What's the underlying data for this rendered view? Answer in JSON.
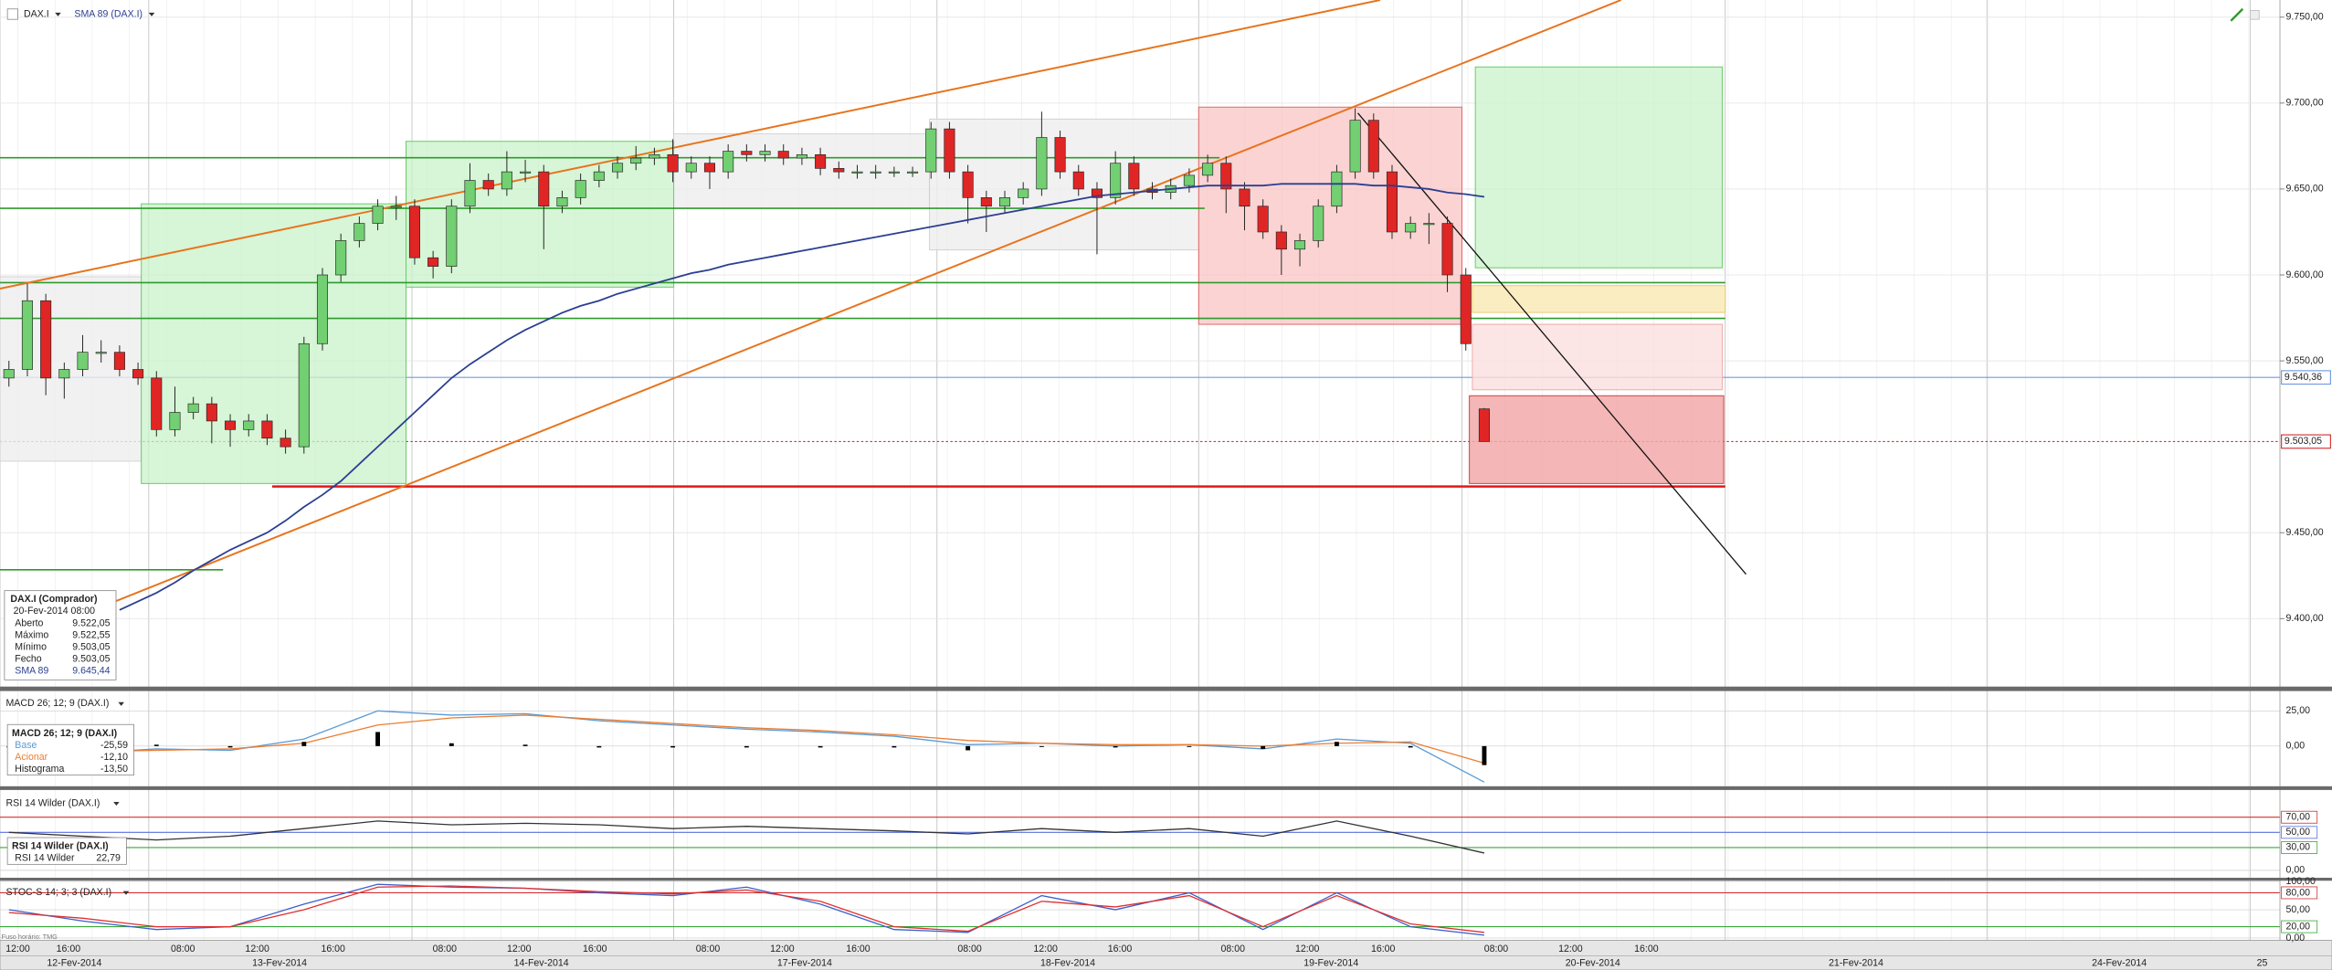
{
  "chart_data": {
    "type": "candlestick",
    "title": "DAX.I",
    "indicator_label": "SMA 89 (DAX.I)",
    "colors": {
      "up": "#72cf72",
      "down": "#e02525",
      "wick": "#222222"
    },
    "ylim": [
      9360,
      9760
    ],
    "yticks": [
      {
        "value": 9400,
        "label": "9.400,00"
      },
      {
        "value": 9450,
        "label": "9.450,00"
      },
      {
        "value": 9550,
        "label": "9.550,00"
      },
      {
        "value": 9600,
        "label": "9.600,00"
      },
      {
        "value": 9650,
        "label": "9.650,00"
      },
      {
        "value": 9700,
        "label": "9.700,00"
      },
      {
        "value": 9750,
        "label": "9.750,00"
      }
    ],
    "grid": true,
    "price_markers": [
      {
        "value": 9540.36,
        "label": "9.540,36",
        "color": "#6f9be0"
      },
      {
        "value": 9503.05,
        "label": "9.503,05",
        "color": "#d43030"
      }
    ],
    "ohlc": [
      [
        9540,
        9550,
        9535,
        9545
      ],
      [
        9545,
        9595,
        9541,
        9585
      ],
      [
        9585,
        9589,
        9530,
        9540
      ],
      [
        9540,
        9549,
        9528,
        9545
      ],
      [
        9545,
        9565,
        9541,
        9555
      ],
      [
        9555,
        9562,
        9549,
        9555
      ],
      [
        9555,
        9559,
        9541,
        9545
      ],
      [
        9545,
        9549,
        9536,
        9540
      ],
      [
        9540,
        9544,
        9506,
        9510
      ],
      [
        9510,
        9535,
        9506,
        9520
      ],
      [
        9520,
        9529,
        9516,
        9525
      ],
      [
        9525,
        9529,
        9502,
        9515
      ],
      [
        9515,
        9519,
        9500,
        9510
      ],
      [
        9510,
        9519,
        9506,
        9515
      ],
      [
        9515,
        9519,
        9501,
        9505
      ],
      [
        9505,
        9510,
        9496,
        9500
      ],
      [
        9500,
        9564,
        9496,
        9560
      ],
      [
        9560,
        9604,
        9556,
        9600
      ],
      [
        9600,
        9624,
        9596,
        9620
      ],
      [
        9620,
        9634,
        9616,
        9630
      ],
      [
        9630,
        9644,
        9626,
        9640
      ],
      [
        9640,
        9646,
        9632,
        9640
      ],
      [
        9640,
        9644,
        9606,
        9610
      ],
      [
        9610,
        9614,
        9598,
        9605
      ],
      [
        9605,
        9644,
        9601,
        9640
      ],
      [
        9640,
        9665,
        9636,
        9655
      ],
      [
        9655,
        9659,
        9646,
        9650
      ],
      [
        9650,
        9672,
        9646,
        9660
      ],
      [
        9660,
        9667,
        9654,
        9660
      ],
      [
        9660,
        9664,
        9615,
        9640
      ],
      [
        9640,
        9649,
        9636,
        9645
      ],
      [
        9645,
        9659,
        9641,
        9655
      ],
      [
        9655,
        9664,
        9651,
        9660
      ],
      [
        9660,
        9669,
        9656,
        9665
      ],
      [
        9665,
        9675,
        9661,
        9668
      ],
      [
        9668,
        9674,
        9664,
        9670
      ],
      [
        9670,
        9679,
        9654,
        9660
      ],
      [
        9660,
        9669,
        9656,
        9665
      ],
      [
        9665,
        9669,
        9650,
        9660
      ],
      [
        9660,
        9676,
        9656,
        9672
      ],
      [
        9672,
        9676,
        9666,
        9670
      ],
      [
        9670,
        9676,
        9666,
        9672
      ],
      [
        9672,
        9676,
        9664,
        9668
      ],
      [
        9668,
        9674,
        9664,
        9670
      ],
      [
        9670,
        9674,
        9658,
        9662
      ],
      [
        9662,
        9666,
        9656,
        9660
      ],
      [
        9660,
        9664,
        9656,
        9660
      ],
      [
        9660,
        9664,
        9656,
        9660
      ],
      [
        9660,
        9663,
        9657,
        9660
      ],
      [
        9660,
        9663,
        9657,
        9660
      ],
      [
        9660,
        9689,
        9656,
        9685
      ],
      [
        9685,
        9689,
        9656,
        9660
      ],
      [
        9660,
        9664,
        9630,
        9645
      ],
      [
        9645,
        9649,
        9625,
        9640
      ],
      [
        9640,
        9649,
        9636,
        9645
      ],
      [
        9645,
        9654,
        9641,
        9650
      ],
      [
        9650,
        9695,
        9646,
        9680
      ],
      [
        9680,
        9684,
        9656,
        9660
      ],
      [
        9660,
        9664,
        9646,
        9650
      ],
      [
        9650,
        9654,
        9612,
        9645
      ],
      [
        9645,
        9672,
        9641,
        9665
      ],
      [
        9665,
        9669,
        9646,
        9650
      ],
      [
        9650,
        9654,
        9644,
        9648
      ],
      [
        9648,
        9656,
        9644,
        9652
      ],
      [
        9652,
        9662,
        9648,
        9658
      ],
      [
        9658,
        9670,
        9654,
        9665
      ],
      [
        9665,
        9669,
        9636,
        9650
      ],
      [
        9650,
        9654,
        9626,
        9640
      ],
      [
        9640,
        9644,
        9621,
        9625
      ],
      [
        9625,
        9629,
        9600,
        9615
      ],
      [
        9615,
        9624,
        9605,
        9620
      ],
      [
        9620,
        9644,
        9616,
        9640
      ],
      [
        9640,
        9664,
        9636,
        9660
      ],
      [
        9660,
        9697,
        9656,
        9690
      ],
      [
        9690,
        9694,
        9656,
        9660
      ],
      [
        9660,
        9664,
        9621,
        9625
      ],
      [
        9625,
        9634,
        9621,
        9630
      ],
      [
        9630,
        9636,
        9618,
        9630
      ],
      [
        9630,
        9634,
        9590,
        9600
      ],
      [
        9600,
        9604,
        9556,
        9560
      ],
      [
        9522.05,
        9522.55,
        9503.05,
        9503.05
      ]
    ],
    "series": [
      {
        "name": "SMA 89",
        "color": "#2b3f91",
        "values": [
          null,
          null,
          null,
          null,
          null,
          null,
          9405,
          9410,
          9415,
          9421,
          9428,
          9434,
          9440,
          9445,
          9450,
          9457,
          9465,
          9472,
          9480,
          9490,
          9500,
          9510,
          9520,
          9530,
          9540,
          9548,
          9555,
          9562,
          9568,
          9573,
          9578,
          9582,
          9585,
          9589,
          9592,
          9595,
          9598,
          9601,
          9603,
          9606,
          9608,
          9610,
          9612,
          9614,
          9616,
          9618,
          9620,
          9622,
          9624,
          9626,
          9628,
          9630,
          9632,
          9634,
          9636,
          9638,
          9640,
          9642,
          9644,
          9646,
          9647,
          9648,
          9649,
          9650,
          9651,
          9652,
          9652,
          9652,
          9652,
          9653,
          9653,
          9653,
          9653,
          9653,
          9652,
          9652,
          9651,
          9650,
          9648,
          9647,
          9645.44
        ]
      }
    ],
    "info_box": {
      "title": "DAX.I (Comprador)",
      "date": "20-Fev-2014 08:00",
      "rows": [
        [
          "Aberto",
          "9.522,05"
        ],
        [
          "Máximo",
          "9.522,55"
        ],
        [
          "Mínimo",
          "9.503,05"
        ],
        [
          "Fecho",
          "9.503,05"
        ],
        [
          "SMA 89",
          "9.645,44"
        ]
      ]
    },
    "panels": [
      {
        "type": "macd",
        "title": "MACD 26; 12; 9 (DAX.I)",
        "ylim": [
          -28,
          37.5
        ],
        "yticks": [
          {
            "value": 0,
            "label": "0,00"
          },
          {
            "value": 25,
            "label": "25,00"
          }
        ],
        "grid_colors": [
          "#cccccc",
          "#cccccc"
        ],
        "series": [
          {
            "name": "Base",
            "color": "#5b9bd5",
            "values": [
              -3,
              -5,
              -2,
              -3,
              5,
              25,
              22,
              23,
              18,
              15,
              12,
              10,
              7,
              1,
              2,
              0,
              1,
              -2,
              5,
              2,
              -25.59
            ]
          },
          {
            "name": "Acionar",
            "color": "#ed7d31",
            "values": [
              -2,
              -4,
              -3,
              -2,
              2,
              15,
              20,
              22,
              19,
              16,
              13,
              11,
              8,
              4,
              2,
              1,
              1,
              0,
              2,
              3,
              -12.1
            ]
          },
          {
            "name": "Histograma",
            "color": "#000000",
            "values": [
              -1,
              -1,
              1,
              -1,
              3,
              10,
              2,
              1,
              -1,
              -1,
              -1,
              -1,
              -1,
              -3,
              0,
              -1,
              0,
              -2,
              3,
              -1,
              -13.5
            ]
          }
        ],
        "info_values": [
          "-25,59",
          "-12,10",
          "-13,50"
        ]
      },
      {
        "type": "rsi",
        "title": "RSI 14 Wilder (DAX.I)",
        "ylim": [
          0,
          100
        ],
        "yticks": [
          {
            "value": 0,
            "label": "0,00"
          },
          {
            "value": 30,
            "label": "30,00"
          },
          {
            "value": 50,
            "label": "50,00"
          },
          {
            "value": 70,
            "label": "70,00"
          }
        ],
        "grid_colors": [
          "#cccccc",
          "#3aa83a",
          "#5a6fe0",
          "#d43030"
        ],
        "series": [
          {
            "name": "RSI 14 Wilder",
            "color": "#333333",
            "values": [
              50,
              45,
              40,
              45,
              55,
              65,
              60,
              62,
              60,
              55,
              58,
              55,
              52,
              48,
              55,
              50,
              55,
              45,
              65,
              45,
              22.79
            ]
          }
        ],
        "info_title": "RSI 14 Wilder (DAX.I)",
        "info_values": [
          "22,79"
        ]
      },
      {
        "type": "stoch",
        "title": "STOC-S 14; 3; 3 (DAX.I)",
        "ylim": [
          0,
          100
        ],
        "yticks": [
          {
            "value": 0,
            "label": "0,00"
          },
          {
            "value": 20,
            "label": "20,00"
          },
          {
            "value": 50,
            "label": "50,00"
          },
          {
            "value": 80,
            "label": "80,00"
          },
          {
            "value": 100,
            "label": "100,00"
          }
        ],
        "grid_colors": [
          "#cccccc",
          "#3aa83a",
          "#cccccc",
          "#d43030",
          "#cccccc"
        ],
        "series": [
          {
            "color": "#3a5fcd",
            "values": [
              50,
              30,
              15,
              20,
              60,
              95,
              90,
              88,
              80,
              75,
              90,
              60,
              15,
              10,
              75,
              50,
              80,
              15,
              80,
              20,
              5
            ]
          },
          {
            "color": "#e03030",
            "values": [
              45,
              35,
              20,
              20,
              50,
              90,
              92,
              88,
              82,
              78,
              85,
              65,
              20,
              12,
              65,
              55,
              75,
              20,
              75,
              25,
              10
            ]
          }
        ]
      }
    ],
    "time_axis": {
      "hours": [
        "12:00",
        "16:00",
        "08:00",
        "12:00",
        "16:00",
        "08:00",
        "12:00",
        "16:00",
        "08:00",
        "12:00",
        "16:00",
        "08:00",
        "12:00",
        "16:00",
        "08:00",
        "12:00",
        "16:00",
        "08:00",
        "12:00",
        "16:00"
      ],
      "dates": [
        "12-Fev-2014",
        "13-Fev-2014",
        "14-Fev-2014",
        "17-Fev-2014",
        "18-Fev-2014",
        "19-Fev-2014",
        "20-Fev-2014",
        "21-Fev-2014",
        "24-Fev-2014",
        "25"
      ]
    },
    "timezone": "Fuso horário: TMG"
  }
}
